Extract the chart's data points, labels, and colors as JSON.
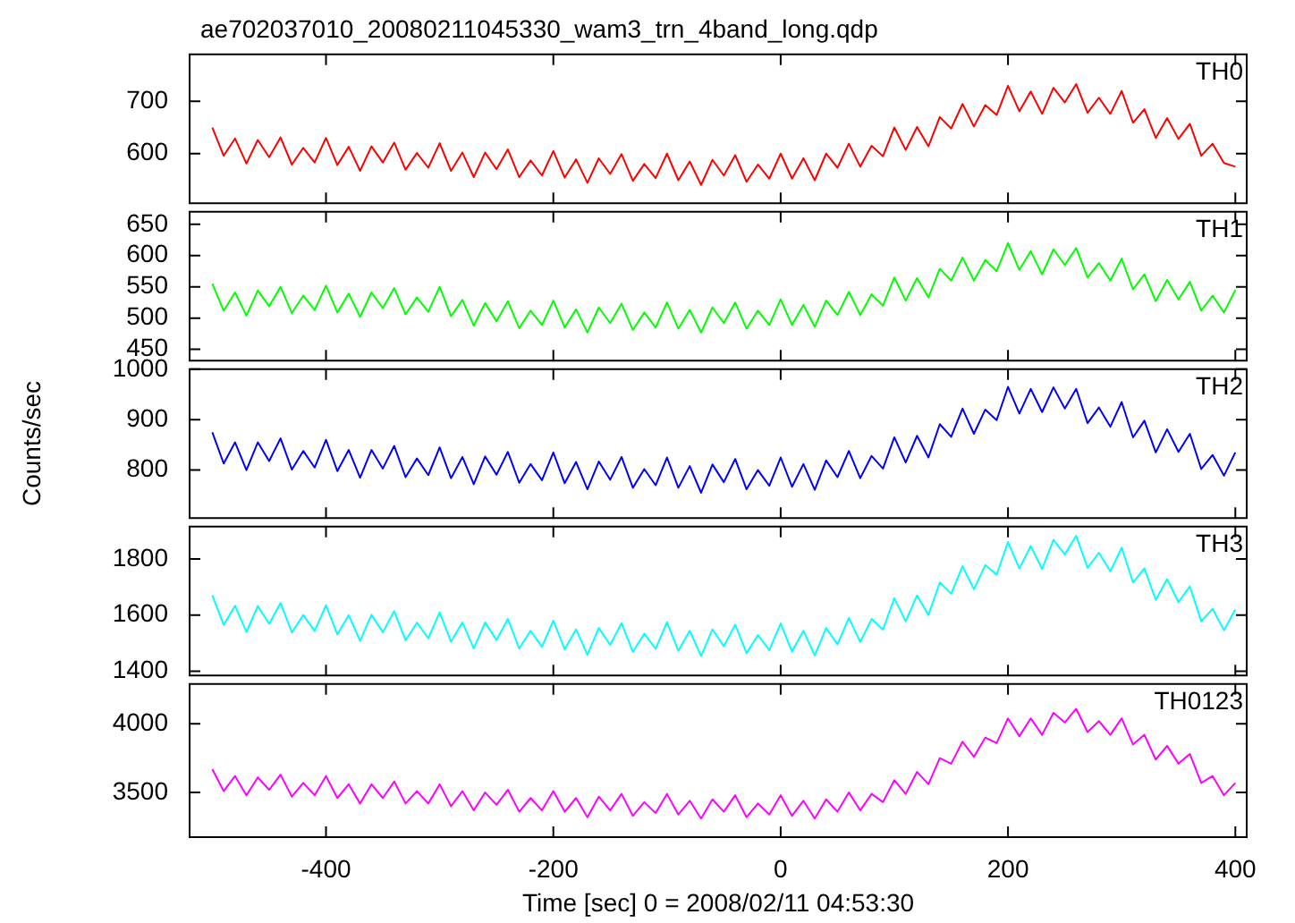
{
  "chart_data": [
    {
      "type": "line",
      "title": "ae702037010_20080211045330_wam3_trn_4band_long.qdp",
      "tick_labels": "y",
      "xlim": [
        -520,
        410
      ],
      "xticks": [
        -400,
        -200,
        0,
        200,
        400
      ],
      "ylim": [
        505,
        790
      ],
      "yticks": [
        600,
        700
      ],
      "x": [
        -500,
        -490,
        -480,
        -470,
        -460,
        -450,
        -440,
        -430,
        -420,
        -410,
        -400,
        -390,
        -380,
        -370,
        -360,
        -350,
        -340,
        -330,
        -320,
        -310,
        -300,
        -290,
        -280,
        -270,
        -260,
        -250,
        -240,
        -230,
        -220,
        -210,
        -200,
        -190,
        -180,
        -170,
        -160,
        -150,
        -140,
        -130,
        -120,
        -110,
        -100,
        -90,
        -80,
        -70,
        -60,
        -50,
        -40,
        -30,
        -20,
        -10,
        0,
        10,
        20,
        30,
        40,
        50,
        60,
        70,
        80,
        90,
        100,
        110,
        120,
        130,
        140,
        150,
        160,
        170,
        180,
        190,
        200,
        210,
        220,
        230,
        240,
        250,
        260,
        270,
        280,
        290,
        300,
        310,
        320,
        330,
        340,
        350,
        360,
        370,
        380,
        390,
        400
      ],
      "series": [
        {
          "name": "TH0",
          "color": "#ff0000",
          "values": [
            650,
            596,
            629,
            581,
            626,
            593,
            631,
            579,
            611,
            583,
            630,
            578,
            613,
            567,
            614,
            583,
            621,
            569,
            601,
            573,
            620,
            567,
            602,
            555,
            602,
            570,
            608,
            555,
            587,
            558,
            605,
            554,
            589,
            544,
            591,
            561,
            599,
            548,
            580,
            553,
            600,
            549,
            585,
            540,
            588,
            558,
            597,
            546,
            579,
            552,
            600,
            552,
            591,
            549,
            600,
            573,
            619,
            575,
            615,
            595,
            650,
            607,
            651,
            614,
            670,
            648,
            695,
            652,
            693,
            674,
            730,
            681,
            719,
            676,
            726,
            698,
            733,
            678,
            707,
            676,
            720,
            659,
            685,
            630,
            668,
            628,
            657,
            596,
            619,
            582,
            575
          ]
        }
      ]
    },
    {
      "type": "line",
      "tick_labels": "y",
      "xlim": [
        -520,
        410
      ],
      "xticks": [
        -400,
        -200,
        0,
        200,
        400
      ],
      "ylim": [
        432,
        670
      ],
      "yticks": [
        450,
        500,
        550,
        600,
        650
      ],
      "x": [
        -500,
        -490,
        -480,
        -470,
        -460,
        -450,
        -440,
        -430,
        -420,
        -410,
        -400,
        -390,
        -380,
        -370,
        -360,
        -350,
        -340,
        -330,
        -320,
        -310,
        -300,
        -290,
        -280,
        -270,
        -260,
        -250,
        -240,
        -230,
        -220,
        -210,
        -200,
        -190,
        -180,
        -170,
        -160,
        -150,
        -140,
        -130,
        -120,
        -110,
        -100,
        -90,
        -80,
        -70,
        -60,
        -50,
        -40,
        -30,
        -20,
        -10,
        0,
        10,
        20,
        30,
        40,
        50,
        60,
        70,
        80,
        90,
        100,
        110,
        120,
        130,
        140,
        150,
        160,
        170,
        180,
        190,
        200,
        210,
        220,
        230,
        240,
        250,
        260,
        270,
        280,
        290,
        300,
        310,
        320,
        330,
        340,
        350,
        360,
        370,
        380,
        390,
        400
      ],
      "series": [
        {
          "name": "TH1",
          "color": "#00ff00",
          "values": [
            555,
            512,
            541,
            504,
            544,
            519,
            550,
            508,
            536,
            513,
            552,
            509,
            539,
            502,
            541,
            516,
            548,
            506,
            533,
            510,
            550,
            503,
            529,
            488,
            524,
            495,
            527,
            484,
            512,
            489,
            528,
            485,
            514,
            477,
            517,
            492,
            523,
            481,
            509,
            485,
            525,
            483,
            513,
            477,
            517,
            492,
            525,
            483,
            512,
            489,
            530,
            489,
            521,
            486,
            528,
            505,
            542,
            505,
            538,
            520,
            565,
            528,
            564,
            533,
            579,
            560,
            597,
            560,
            593,
            575,
            620,
            577,
            607,
            570,
            610,
            585,
            612,
            565,
            588,
            560,
            595,
            546,
            570,
            527,
            561,
            530,
            558,
            512,
            536,
            509,
            545
          ]
        }
      ]
    },
    {
      "type": "line",
      "tick_labels": "y",
      "ylabel": "Counts/sec",
      "xlim": [
        -520,
        410
      ],
      "xticks": [
        -400,
        -200,
        0,
        200,
        400
      ],
      "ylim": [
        705,
        1000
      ],
      "yticks": [
        800,
        900,
        1000
      ],
      "x": [
        -500,
        -490,
        -480,
        -470,
        -460,
        -450,
        -440,
        -430,
        -420,
        -410,
        -400,
        -390,
        -380,
        -370,
        -360,
        -350,
        -340,
        -330,
        -320,
        -310,
        -300,
        -290,
        -280,
        -270,
        -260,
        -250,
        -240,
        -230,
        -220,
        -210,
        -200,
        -190,
        -180,
        -170,
        -160,
        -150,
        -140,
        -130,
        -120,
        -110,
        -100,
        -90,
        -80,
        -70,
        -60,
        -50,
        -40,
        -30,
        -20,
        -10,
        0,
        10,
        20,
        30,
        40,
        50,
        60,
        70,
        80,
        90,
        100,
        110,
        120,
        130,
        140,
        150,
        160,
        170,
        180,
        190,
        200,
        210,
        220,
        230,
        240,
        250,
        260,
        270,
        280,
        290,
        300,
        310,
        320,
        330,
        340,
        350,
        360,
        370,
        380,
        390,
        400
      ],
      "series": [
        {
          "name": "TH2",
          "color": "#0000ff",
          "values": [
            875,
            813,
            855,
            800,
            855,
            818,
            863,
            801,
            838,
            805,
            860,
            798,
            840,
            785,
            840,
            803,
            848,
            786,
            823,
            790,
            845,
            784,
            826,
            772,
            827,
            791,
            836,
            775,
            812,
            780,
            835,
            774,
            816,
            762,
            817,
            781,
            826,
            765,
            802,
            770,
            825,
            765,
            808,
            755,
            811,
            776,
            822,
            762,
            800,
            769,
            825,
            767,
            812,
            761,
            819,
            786,
            838,
            784,
            828,
            803,
            865,
            815,
            868,
            825,
            891,
            866,
            922,
            872,
            920,
            899,
            965,
            912,
            961,
            915,
            964,
            922,
            961,
            893,
            924,
            886,
            935,
            865,
            898,
            835,
            881,
            836,
            872,
            802,
            830,
            789,
            835
          ]
        }
      ]
    },
    {
      "type": "line",
      "tick_labels": "y",
      "xlim": [
        -520,
        410
      ],
      "xticks": [
        -400,
        -200,
        0,
        200,
        400
      ],
      "ylim": [
        1385,
        1915
      ],
      "yticks": [
        1400,
        1600,
        1800
      ],
      "x": [
        -500,
        -490,
        -480,
        -470,
        -460,
        -450,
        -440,
        -430,
        -420,
        -410,
        -400,
        -390,
        -380,
        -370,
        -360,
        -350,
        -340,
        -330,
        -320,
        -310,
        -300,
        -290,
        -280,
        -270,
        -260,
        -250,
        -240,
        -230,
        -220,
        -210,
        -200,
        -190,
        -180,
        -170,
        -160,
        -150,
        -140,
        -130,
        -120,
        -110,
        -100,
        -90,
        -80,
        -70,
        -60,
        -50,
        -40,
        -30,
        -20,
        -10,
        0,
        10,
        20,
        30,
        40,
        50,
        60,
        70,
        80,
        90,
        100,
        110,
        120,
        130,
        140,
        150,
        160,
        170,
        180,
        190,
        200,
        210,
        220,
        230,
        240,
        250,
        260,
        270,
        280,
        290,
        300,
        310,
        320,
        330,
        340,
        350,
        360,
        370,
        380,
        390,
        400
      ],
      "series": [
        {
          "name": "TH3",
          "color": "#00ffff",
          "values": [
            1670,
            1565,
            1633,
            1540,
            1632,
            1569,
            1643,
            1538,
            1600,
            1543,
            1635,
            1531,
            1600,
            1508,
            1601,
            1539,
            1614,
            1510,
            1573,
            1517,
            1610,
            1505,
            1574,
            1481,
            1574,
            1511,
            1586,
            1481,
            1544,
            1487,
            1580,
            1478,
            1549,
            1459,
            1554,
            1494,
            1571,
            1469,
            1534,
            1480,
            1575,
            1473,
            1544,
            1454,
            1549,
            1489,
            1566,
            1464,
            1529,
            1475,
            1570,
            1470,
            1544,
            1456,
            1554,
            1496,
            1590,
            1504,
            1586,
            1548,
            1660,
            1578,
            1670,
            1600,
            1716,
            1676,
            1774,
            1692,
            1778,
            1744,
            1860,
            1766,
            1846,
            1764,
            1868,
            1816,
            1882,
            1768,
            1822,
            1756,
            1840,
            1716,
            1766,
            1654,
            1728,
            1646,
            1702,
            1578,
            1622,
            1546,
            1620
          ]
        }
      ]
    },
    {
      "type": "line",
      "xlabel": "Time [sec] 0 = 2008/02/11 04:53:30",
      "xlim": [
        -520,
        410
      ],
      "xticks": [
        -400,
        -200,
        0,
        200,
        400
      ],
      "ylim": [
        3175,
        4290
      ],
      "yticks": [
        3500,
        4000
      ],
      "x": [
        -500,
        -490,
        -480,
        -470,
        -460,
        -450,
        -440,
        -430,
        -420,
        -410,
        -400,
        -390,
        -380,
        -370,
        -360,
        -350,
        -340,
        -330,
        -320,
        -310,
        -300,
        -290,
        -280,
        -270,
        -260,
        -250,
        -240,
        -230,
        -220,
        -210,
        -200,
        -190,
        -180,
        -170,
        -160,
        -150,
        -140,
        -130,
        -120,
        -110,
        -100,
        -90,
        -80,
        -70,
        -60,
        -50,
        -40,
        -30,
        -20,
        -10,
        0,
        10,
        20,
        30,
        40,
        50,
        60,
        70,
        80,
        90,
        100,
        110,
        120,
        130,
        140,
        150,
        160,
        170,
        180,
        190,
        200,
        210,
        220,
        230,
        240,
        250,
        260,
        270,
        280,
        290,
        300,
        310,
        320,
        330,
        340,
        350,
        360,
        370,
        380,
        390,
        400
      ],
      "series": [
        {
          "name": "TH0123",
          "color": "#ff00ff",
          "values": [
            3670,
            3510,
            3620,
            3480,
            3610,
            3520,
            3630,
            3470,
            3570,
            3480,
            3620,
            3460,
            3560,
            3420,
            3560,
            3460,
            3580,
            3420,
            3510,
            3420,
            3560,
            3400,
            3510,
            3370,
            3500,
            3410,
            3520,
            3360,
            3460,
            3370,
            3510,
            3360,
            3460,
            3320,
            3470,
            3370,
            3490,
            3330,
            3430,
            3350,
            3490,
            3340,
            3440,
            3310,
            3450,
            3360,
            3480,
            3320,
            3420,
            3340,
            3480,
            3330,
            3440,
            3310,
            3450,
            3360,
            3500,
            3370,
            3490,
            3430,
            3590,
            3490,
            3650,
            3560,
            3750,
            3710,
            3870,
            3760,
            3900,
            3860,
            4040,
            3910,
            4040,
            3920,
            4080,
            4010,
            4110,
            3940,
            4020,
            3920,
            4040,
            3850,
            3920,
            3740,
            3840,
            3710,
            3780,
            3570,
            3620,
            3480,
            3570
          ]
        }
      ]
    }
  ]
}
